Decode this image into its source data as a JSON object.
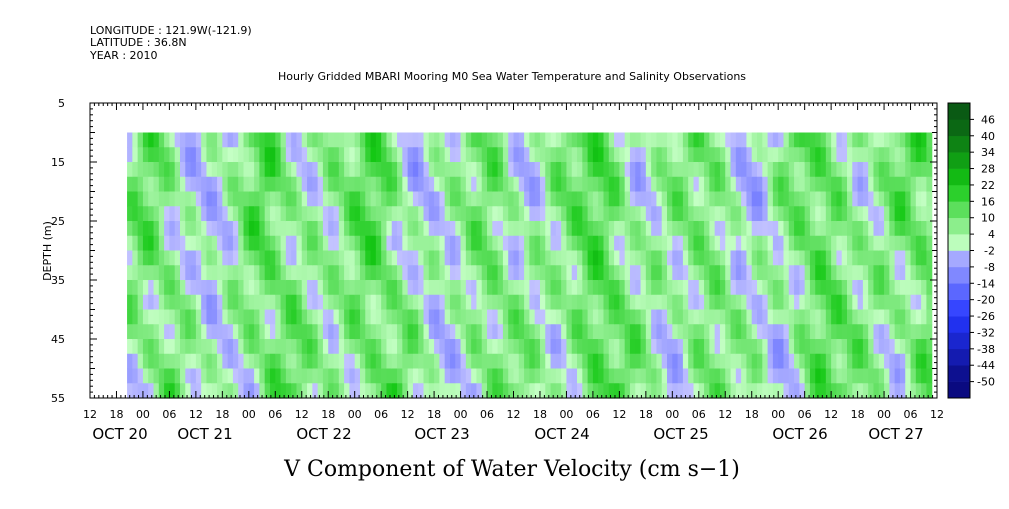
{
  "header": {
    "longitude": "LONGITUDE : 121.9W(-121.9)",
    "latitude": "LATITUDE : 36.8N",
    "year": "YEAR : 2010",
    "title": "Hourly Gridded MBARI Mooring M0 Sea Water Temperature and Salinity Observations"
  },
  "chart_data": {
    "type": "heatmap",
    "title": "Hourly Gridded MBARI Mooring M0 Sea Water Temperature and Salinity Observations",
    "xlabel": "",
    "ylabel": "DEPTH (m)",
    "variable_label": "V Component of Water Velocity (cm s−1)",
    "x_unit": "hours since Oct 20 00:00, 2010",
    "xlim": [
      -12,
      180
    ],
    "data_x_range": [
      -3.6,
      178.8
    ],
    "ylim": [
      55,
      5
    ],
    "data_depth_range": [
      10,
      55
    ],
    "y_ticks": [
      "5",
      "15",
      "25",
      "35",
      "45",
      "55"
    ],
    "x_hour_ticks": [
      "12",
      "18",
      "00",
      "06",
      "12",
      "18",
      "00",
      "06",
      "12",
      "18",
      "00",
      "06",
      "12",
      "18",
      "00",
      "06",
      "12",
      "18",
      "00",
      "06",
      "12",
      "18",
      "00",
      "06",
      "12",
      "18",
      "00",
      "06",
      "12",
      "18",
      "00",
      "06",
      "12"
    ],
    "x_day_labels": [
      "OCT 20",
      "OCT 21",
      "OCT 22",
      "OCT 23",
      "OCT 24",
      "OCT 25",
      "OCT 26",
      "OCT 27"
    ],
    "colorbar": {
      "levels": [
        -50,
        -44,
        -38,
        -32,
        -26,
        -20,
        -14,
        -8,
        -2,
        4,
        10,
        16,
        22,
        28,
        34,
        40,
        46
      ],
      "labels": [
        "46",
        "40",
        "34",
        "28",
        "22",
        "16",
        "10",
        "4",
        "-2",
        "-8",
        "-14",
        "-20",
        "-26",
        "-32",
        "-38",
        "-44",
        "-50"
      ],
      "negative_color": "#2436ff",
      "positive_color": "#14c814",
      "extreme_negative_color": "#0a0a80",
      "extreme_positive_color": "#0a5a14"
    },
    "grid": false
  }
}
